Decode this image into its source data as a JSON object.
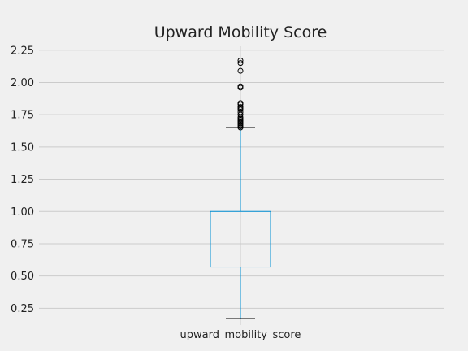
{
  "chart_data": {
    "type": "box",
    "title": "Upward Mobility Score",
    "xlabel": "",
    "ylabel": "",
    "categories": [
      "upward_mobility_score"
    ],
    "ylim": [
      0.12,
      2.28
    ],
    "yticks": [
      0.25,
      0.5,
      0.75,
      1.0,
      1.25,
      1.5,
      1.75,
      2.0,
      2.25
    ],
    "ytick_labels": [
      "0.25",
      "0.50",
      "0.75",
      "1.00",
      "1.25",
      "1.50",
      "1.75",
      "2.00",
      "2.25"
    ],
    "grid": true,
    "boxes": [
      {
        "name": "upward_mobility_score",
        "whisker_low": 0.17,
        "q1": 0.57,
        "median": 0.74,
        "q3": 1.0,
        "whisker_high": 1.65,
        "outliers": [
          1.65,
          1.66,
          1.67,
          1.68,
          1.69,
          1.7,
          1.71,
          1.72,
          1.73,
          1.75,
          1.77,
          1.79,
          1.8,
          1.81,
          1.83,
          1.84,
          1.96,
          1.97,
          2.09,
          2.15,
          2.17
        ]
      }
    ],
    "colors": {
      "box": "#008fd5",
      "median": "#e5ae38",
      "whisker_cap": "#000000",
      "outlier": "#000000"
    }
  }
}
